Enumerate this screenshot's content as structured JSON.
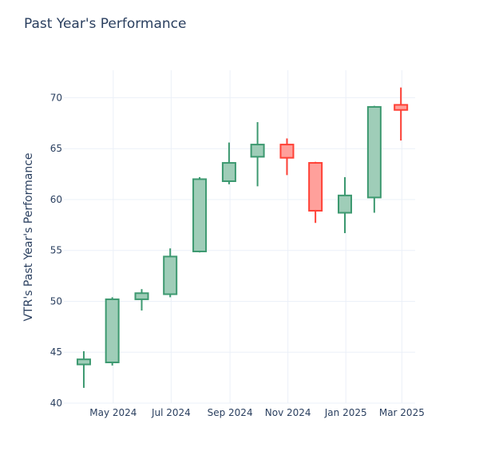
{
  "chart_data": {
    "type": "candlestick",
    "title": "Past Year's Performance",
    "xlabel": "",
    "ylabel": "VTR's Past Year's Performance",
    "ylim": [
      40,
      72.7
    ],
    "yticks": [
      40,
      45,
      50,
      55,
      60,
      65,
      70
    ],
    "xticks": [
      {
        "label": "May 2024",
        "date": "2024-05-01"
      },
      {
        "label": "Jul 2024",
        "date": "2024-07-01"
      },
      {
        "label": "Sep 2024",
        "date": "2024-09-01"
      },
      {
        "label": "Nov 2024",
        "date": "2024-11-01"
      },
      {
        "label": "Jan 2025",
        "date": "2025-01-01"
      },
      {
        "label": "Mar 2025",
        "date": "2025-03-01"
      }
    ],
    "xrange": [
      "2024-03-10",
      "2025-03-15"
    ],
    "grid": true,
    "colors": {
      "increasing": "#3d9970",
      "increasing_fill": "#9fcdb8",
      "decreasing": "#ff4136",
      "decreasing_fill": "#ffa09b"
    },
    "candles": [
      {
        "date": "2024-03-31",
        "open": 43.8,
        "high": 45.1,
        "low": 41.5,
        "close": 44.3
      },
      {
        "date": "2024-04-30",
        "open": 44.0,
        "high": 50.4,
        "low": 43.7,
        "close": 50.2
      },
      {
        "date": "2024-05-31",
        "open": 50.2,
        "high": 51.2,
        "low": 49.1,
        "close": 50.8
      },
      {
        "date": "2024-06-30",
        "open": 50.7,
        "high": 55.2,
        "low": 50.4,
        "close": 54.4
      },
      {
        "date": "2024-07-31",
        "open": 54.9,
        "high": 62.2,
        "low": 54.8,
        "close": 62.0
      },
      {
        "date": "2024-08-31",
        "open": 61.8,
        "high": 65.6,
        "low": 61.5,
        "close": 63.6
      },
      {
        "date": "2024-09-30",
        "open": 64.2,
        "high": 67.6,
        "low": 61.3,
        "close": 65.4
      },
      {
        "date": "2024-10-31",
        "open": 65.4,
        "high": 66.0,
        "low": 62.4,
        "close": 64.1
      },
      {
        "date": "2024-11-30",
        "open": 63.6,
        "high": 63.7,
        "low": 57.7,
        "close": 58.9
      },
      {
        "date": "2024-12-31",
        "open": 58.7,
        "high": 62.2,
        "low": 56.7,
        "close": 60.4
      },
      {
        "date": "2025-01-31",
        "open": 60.2,
        "high": 69.2,
        "low": 58.7,
        "close": 69.1
      },
      {
        "date": "2025-02-28",
        "open": 69.3,
        "high": 71.0,
        "low": 65.8,
        "close": 68.8
      }
    ]
  }
}
